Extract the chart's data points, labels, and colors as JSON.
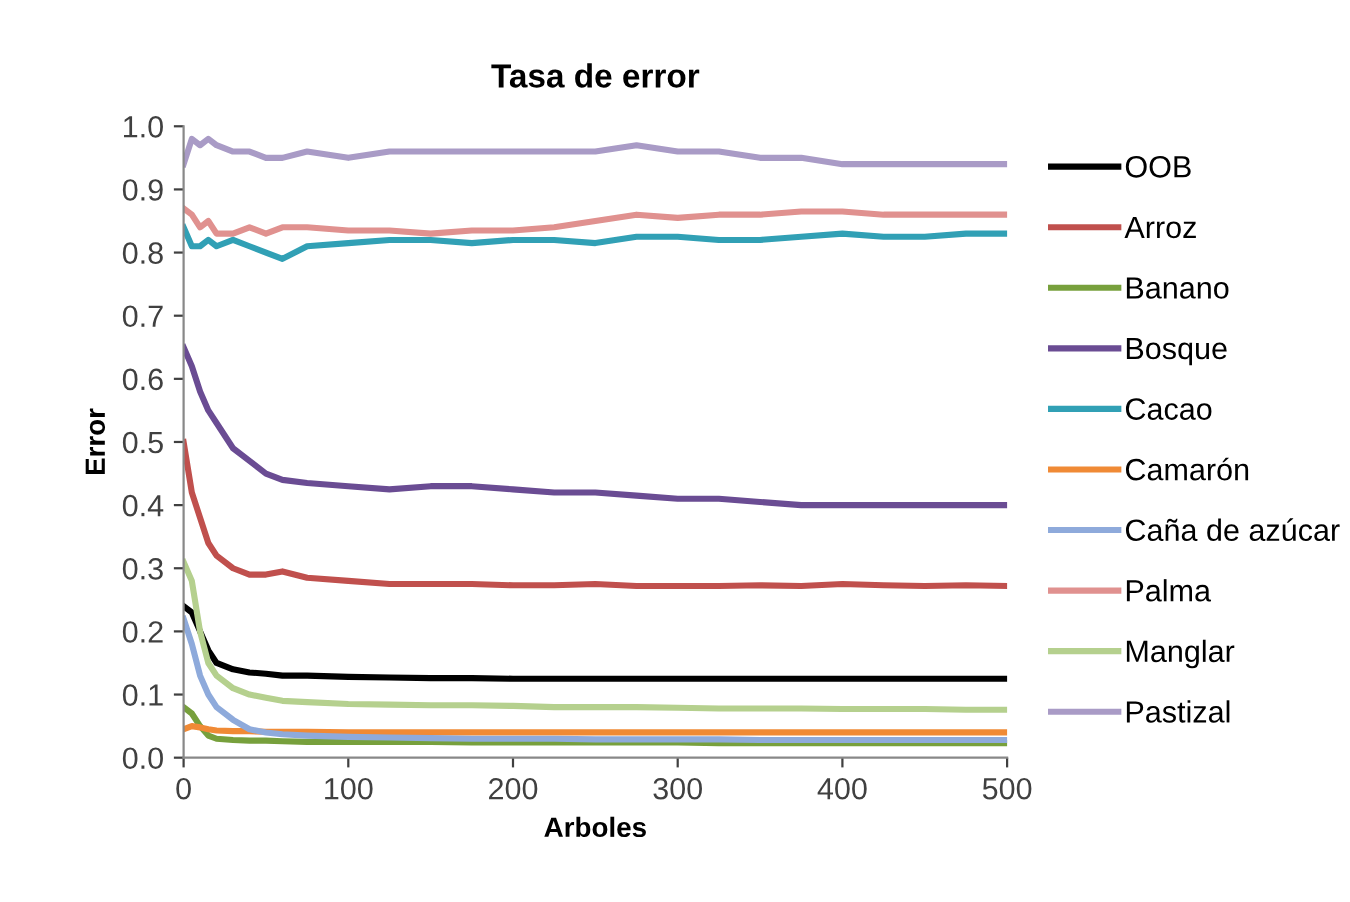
{
  "chart_data": {
    "type": "line",
    "title": "Tasa de error",
    "xlabel": "Arboles",
    "ylabel": "Error",
    "x": [
      0,
      5,
      10,
      15,
      20,
      30,
      40,
      50,
      60,
      75,
      100,
      125,
      150,
      175,
      200,
      225,
      250,
      275,
      300,
      325,
      350,
      375,
      400,
      425,
      450,
      475,
      500
    ],
    "xlim": [
      0,
      500
    ],
    "xticks": [
      0,
      100,
      200,
      300,
      400,
      500
    ],
    "ylim": [
      0,
      1
    ],
    "yticks": [
      {
        "value": 0,
        "label": "0.0"
      },
      {
        "value": 0.1,
        "label": "0.1"
      },
      {
        "value": 0.2,
        "label": "0.2"
      },
      {
        "value": 0.3,
        "label": "0.3"
      },
      {
        "value": 0.4,
        "label": "0.4"
      },
      {
        "value": 0.5,
        "label": "0.5"
      },
      {
        "value": 0.6,
        "label": "0.6"
      },
      {
        "value": 0.7,
        "label": "0.7"
      },
      {
        "value": 0.8,
        "label": "0.8"
      },
      {
        "value": 0.9,
        "label": "0.9"
      },
      {
        "value": 1,
        "label": "1.0"
      }
    ],
    "grid": false,
    "legend": "right",
    "marker": "none",
    "line_style": "solid",
    "series": [
      {
        "name": "OOB",
        "color": "#000000",
        "values": [
          0.24,
          0.23,
          0.2,
          0.17,
          0.15,
          0.14,
          0.135,
          0.133,
          0.13,
          0.13,
          0.128,
          0.127,
          0.126,
          0.126,
          0.125,
          0.125,
          0.125,
          0.125,
          0.125,
          0.125,
          0.125,
          0.125,
          0.125,
          0.125,
          0.125,
          0.125,
          0.125
        ]
      },
      {
        "name": "Arroz",
        "color": "#c0504d",
        "values": [
          0.5,
          0.42,
          0.38,
          0.34,
          0.32,
          0.3,
          0.29,
          0.29,
          0.295,
          0.285,
          0.28,
          0.275,
          0.275,
          0.275,
          0.273,
          0.273,
          0.275,
          0.272,
          0.272,
          0.272,
          0.273,
          0.272,
          0.275,
          0.273,
          0.272,
          0.273,
          0.272
        ]
      },
      {
        "name": "Banano",
        "color": "#77a03c",
        "values": [
          0.08,
          0.07,
          0.05,
          0.035,
          0.03,
          0.028,
          0.027,
          0.027,
          0.026,
          0.025,
          0.025,
          0.025,
          0.025,
          0.024,
          0.024,
          0.024,
          0.024,
          0.024,
          0.024,
          0.023,
          0.023,
          0.023,
          0.023,
          0.023,
          0.023,
          0.023,
          0.023
        ]
      },
      {
        "name": "Bosque",
        "color": "#6a4c93",
        "values": [
          0.65,
          0.62,
          0.58,
          0.55,
          0.53,
          0.49,
          0.47,
          0.45,
          0.44,
          0.435,
          0.43,
          0.425,
          0.43,
          0.43,
          0.425,
          0.42,
          0.42,
          0.415,
          0.41,
          0.41,
          0.405,
          0.4,
          0.4,
          0.4,
          0.4,
          0.4,
          0.4
        ]
      },
      {
        "name": "Cacao",
        "color": "#31a0b5",
        "values": [
          0.84,
          0.81,
          0.81,
          0.82,
          0.81,
          0.82,
          0.81,
          0.8,
          0.79,
          0.81,
          0.815,
          0.82,
          0.82,
          0.815,
          0.82,
          0.82,
          0.815,
          0.825,
          0.825,
          0.82,
          0.82,
          0.825,
          0.83,
          0.825,
          0.825,
          0.83,
          0.83
        ]
      },
      {
        "name": "Camarón",
        "color": "#f08a35",
        "values": [
          0.045,
          0.05,
          0.048,
          0.045,
          0.043,
          0.042,
          0.042,
          0.041,
          0.041,
          0.041,
          0.04,
          0.04,
          0.04,
          0.04,
          0.04,
          0.04,
          0.04,
          0.04,
          0.04,
          0.04,
          0.04,
          0.04,
          0.04,
          0.04,
          0.04,
          0.04,
          0.04
        ]
      },
      {
        "name": "Caña de azúcar",
        "color": "#8eaadb",
        "values": [
          0.22,
          0.18,
          0.13,
          0.1,
          0.08,
          0.06,
          0.045,
          0.04,
          0.037,
          0.035,
          0.033,
          0.032,
          0.031,
          0.03,
          0.03,
          0.03,
          0.029,
          0.029,
          0.029,
          0.029,
          0.028,
          0.028,
          0.028,
          0.028,
          0.028,
          0.028,
          0.028
        ]
      },
      {
        "name": "Palma",
        "color": "#e0918f",
        "values": [
          0.87,
          0.86,
          0.84,
          0.85,
          0.83,
          0.83,
          0.84,
          0.83,
          0.84,
          0.84,
          0.835,
          0.835,
          0.83,
          0.835,
          0.835,
          0.84,
          0.85,
          0.86,
          0.855,
          0.86,
          0.86,
          0.865,
          0.865,
          0.86,
          0.86,
          0.86,
          0.86
        ]
      },
      {
        "name": "Manglar",
        "color": "#b5d08e",
        "values": [
          0.31,
          0.28,
          0.2,
          0.15,
          0.13,
          0.11,
          0.1,
          0.095,
          0.09,
          0.088,
          0.085,
          0.084,
          0.083,
          0.083,
          0.082,
          0.08,
          0.08,
          0.08,
          0.079,
          0.078,
          0.078,
          0.078,
          0.077,
          0.077,
          0.077,
          0.076,
          0.076
        ]
      },
      {
        "name": "Pastizal",
        "color": "#a99bc6",
        "values": [
          0.94,
          0.98,
          0.97,
          0.98,
          0.97,
          0.96,
          0.96,
          0.95,
          0.95,
          0.96,
          0.95,
          0.96,
          0.96,
          0.96,
          0.96,
          0.96,
          0.96,
          0.97,
          0.96,
          0.96,
          0.95,
          0.95,
          0.94,
          0.94,
          0.94,
          0.94,
          0.94
        ]
      }
    ]
  }
}
